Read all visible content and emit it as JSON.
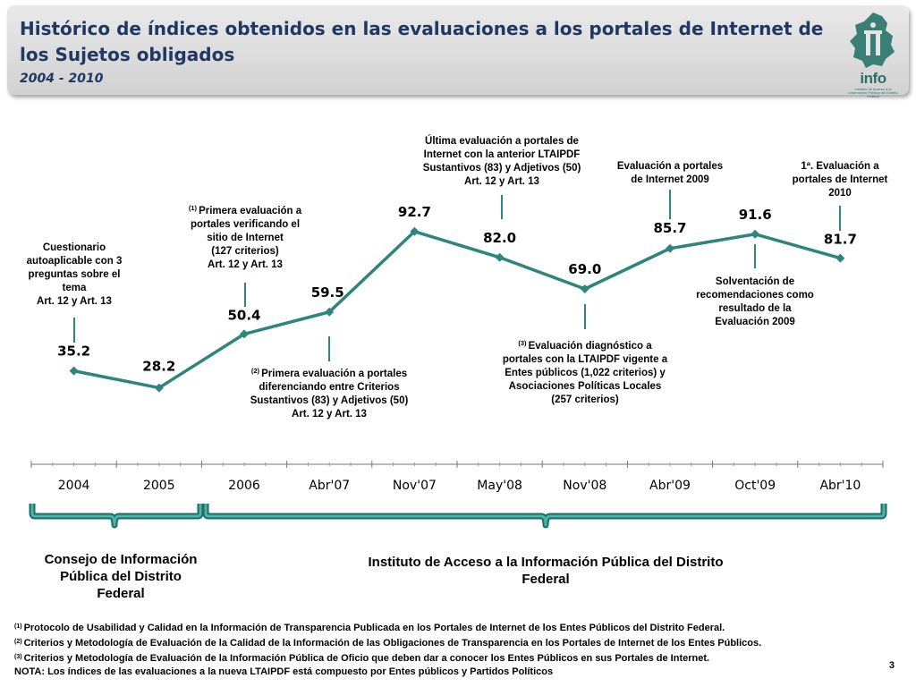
{
  "header": {
    "title": "Histórico de índices obtenidos en las evaluaciones a los portales de Internet de los Sujetos obligados",
    "subtitle": "2004 - 2010",
    "logo_text": "info",
    "logo_subtext": "Instituto de Acceso a la Información Pública del Distrito Federal"
  },
  "chart_data": {
    "type": "line",
    "title": "",
    "xlabel": "",
    "ylabel": "",
    "ylim": [
      0,
      100
    ],
    "categories": [
      "2004",
      "2005",
      "2006",
      "Abr'07",
      "Nov'07",
      "May'08",
      "Nov'08",
      "Abr'09",
      "Oct'09",
      "Abr'10"
    ],
    "values": [
      35.2,
      28.2,
      50.4,
      59.5,
      92.7,
      82.0,
      69.0,
      85.7,
      91.6,
      81.7
    ],
    "value_labels": [
      "35.2",
      "28.2",
      "50.4",
      "59.5",
      "92.7",
      "82.0",
      "69.0",
      "85.7",
      "91.6",
      "81.7"
    ],
    "line_color": "#2e857e",
    "grid": false,
    "legend": "none",
    "annotations": [
      {
        "index": 0,
        "position": "above",
        "sup": "",
        "lines": [
          "Cuestionario",
          "autoaplicable con 3",
          "preguntas sobre el",
          "tema",
          "Art. 12 y Art. 13"
        ]
      },
      {
        "index": 2,
        "position": "above",
        "sup": "(1)",
        "lines": [
          "Primera evaluación a",
          "portales verificando el",
          "sitio de Internet",
          "(127 criterios)",
          "Art. 12 y Art. 13"
        ]
      },
      {
        "index": 3,
        "position": "below",
        "sup": "(2)",
        "lines": [
          "Primera evaluación a portales",
          "diferenciando entre Criterios",
          "Sustantivos (83) y Adjetivos (50)",
          "Art. 12 y Art. 13"
        ]
      },
      {
        "index": 5,
        "position": "above",
        "sup": "",
        "lines": [
          "Última evaluación a portales de",
          "Internet con la anterior LTAIPDF",
          "Sustantivos (83) y Adjetivos (50)",
          "Art. 12 y Art. 13"
        ]
      },
      {
        "index": 6,
        "position": "below",
        "sup": "(3)",
        "lines": [
          "Evaluación diagnóstico a",
          "portales con la LTAIPDF vigente a",
          "Entes públicos (1,022 criterios) y",
          "Asociaciones Políticas Locales",
          "(257 criterios)"
        ]
      },
      {
        "index": 7,
        "position": "above",
        "sup": "",
        "lines": [
          "Evaluación a portales",
          "de Internet 2009"
        ]
      },
      {
        "index": 8,
        "position": "below",
        "sup": "",
        "lines": [
          "Solventación de",
          "recomendaciones como",
          "resultado de la",
          "Evaluación 2009"
        ]
      },
      {
        "index": 9,
        "position": "above",
        "sup": "",
        "lines": [
          "1ª. Evaluación a",
          "portales de Internet",
          "2010"
        ]
      }
    ]
  },
  "brackets": [
    {
      "label": "Consejo de Información Pública del Distrito Federal"
    },
    {
      "label": "Instituto de Acceso a la Información Pública del Distrito Federal"
    }
  ],
  "footnotes": [
    {
      "sup": "(1)",
      "text": "Protocolo de Usabilidad y Calidad en la Información de Transparencia Publicada en los Portales de Internet de los Entes Públicos del Distrito Federal."
    },
    {
      "sup": "(2)",
      "text": "Criterios y Metodología de Evaluación de la Calidad de la Información de las Obligaciones de Transparencia en los Portales de Internet de los Entes Públicos."
    },
    {
      "sup": "(3)",
      "text": "Criterios y Metodología de Evaluación de la Información Pública de Oficio que deben dar a conocer los Entes Públicos en sus Portales de Internet."
    },
    {
      "sup": "",
      "text": "NOTA: Los índices de las evaluaciones a la nueva LTAIPDF está compuesto por Entes públicos y Partidos Políticos"
    }
  ],
  "page_number": "3"
}
